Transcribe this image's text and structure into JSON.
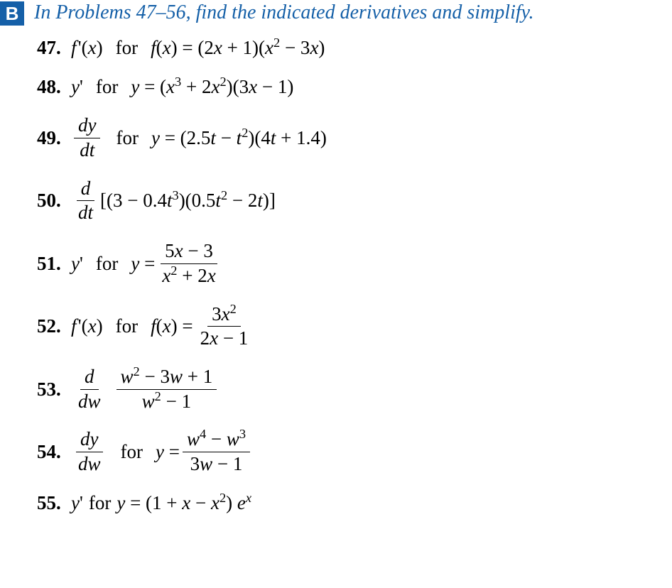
{
  "header": {
    "badge": "B",
    "text": "In Problems 47–56, find the indicated derivatives and simplify.",
    "badge_bg": "#1560a8",
    "badge_fg": "#ffffff",
    "text_color": "#1560a8",
    "font_size": 28
  },
  "problems": [
    {
      "num": "47.",
      "lhs_html": "<span class='it'>f</span>&#8202;'(<span class='it'>x</span>)",
      "for": "for",
      "rhs_html": "<span class='it'>f</span>(<span class='it'>x</span>) = (2<span class='it'>x</span> + 1)(<span class='it'>x</span><sup>2</sup> − 3<span class='it'>x</span>)"
    },
    {
      "num": "48.",
      "lhs_html": "<span class='it'>y</span>'",
      "for": "for",
      "rhs_html": "<span class='it'>y</span> = (<span class='it'>x</span><sup>3</sup> + 2<span class='it'>x</span><sup>2</sup>)(3<span class='it'>x</span> − 1)"
    },
    {
      "num": "49.",
      "lhs_frac": {
        "num_html": "<span class='it'>dy</span>",
        "den_html": "<span class='it'>dt</span>"
      },
      "for": "for",
      "rhs_html": "<span class='it'>y</span> = (2.5<span class='it'>t</span> − <span class='it'>t</span><sup>2</sup>)(4<span class='it'>t</span> + 1.4)"
    },
    {
      "num": "50.",
      "lhs_frac": {
        "num_html": "<span class='it'>d</span>",
        "den_html": "<span class='it'>dt</span>"
      },
      "rhs_html": "[(3 − 0.4<span class='it'>t</span><sup>3</sup>)(0.5<span class='it'>t</span><sup>2</sup> − 2<span class='it'>t</span>)]"
    },
    {
      "num": "51.",
      "lhs_html": "<span class='it'>y</span>'",
      "for": "for",
      "rhs_prefix_html": "<span class='it'>y</span> = ",
      "rhs_frac": {
        "num_html": "5<span class='it'>x</span> − 3",
        "den_html": "<span class='it'>x</span><sup>2</sup> + 2<span class='it'>x</span>"
      }
    },
    {
      "num": "52.",
      "lhs_html": "<span class='it'>f</span>&#8202;'(<span class='it'>x</span>)",
      "for": "for",
      "rhs_prefix_html": "<span class='it'>f</span>(<span class='it'>x</span>) = ",
      "rhs_frac": {
        "num_html": "3<span class='it'>x</span><sup>2</sup>",
        "den_html": "2<span class='it'>x</span> − 1"
      }
    },
    {
      "num": "53.",
      "lhs_frac": {
        "num_html": "<span class='it'>d</span>",
        "den_html": "<span class='it'>dw</span>"
      },
      "rhs_frac": {
        "num_html": "<span class='it'>w</span><sup>2</sup> − 3<span class='it'>w</span> + 1",
        "den_html": "<span class='it'>w</span><sup>2</sup> − 1"
      }
    },
    {
      "num": "54.",
      "lhs_frac": {
        "num_html": "<span class='it'>dy</span>",
        "den_html": "<span class='it'>dw</span>"
      },
      "for": "for",
      "rhs_prefix_html": "<span class='it'>y</span> = ",
      "rhs_frac": {
        "num_html": "<span class='it'>w</span><sup>4</sup> − <span class='it'>w</span><sup>3</sup>",
        "den_html": "3<span class='it'>w</span> − 1"
      }
    },
    {
      "num": "55.",
      "lhs_html": "<span class='it'>y</span>'",
      "for": "for",
      "rhs_html": "<span class='it'>y</span> = (1 + <span class='it'>x</span> − <span class='it'>x</span><sup>2</sup>) <span class='it'>e</span><sup><span class='it'>x</span></sup>",
      "tight_for": true
    }
  ],
  "style": {
    "body_bg": "#ffffff",
    "text_color": "#000000",
    "problem_font_size": 27,
    "num_font_weight": "bold"
  }
}
